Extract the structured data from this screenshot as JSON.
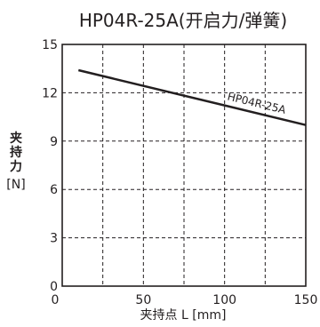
{
  "chart_data": {
    "type": "line",
    "title": "HP04R-25A(开启力/弹簧)",
    "xlabel": "夹持点 L  [mm]",
    "ylabel_lines": [
      "夹",
      "持",
      "力",
      "[N]"
    ],
    "x_ticks": [
      "0",
      "50",
      "100",
      "150"
    ],
    "y_ticks": [
      "0",
      "3",
      "6",
      "9",
      "12",
      "15"
    ],
    "xlim": [
      0,
      150
    ],
    "ylim": [
      0,
      15
    ],
    "grid": true,
    "series": [
      {
        "name": "HP04R-25A",
        "x": [
          10,
          150
        ],
        "y": [
          13.4,
          10.0
        ]
      }
    ]
  }
}
